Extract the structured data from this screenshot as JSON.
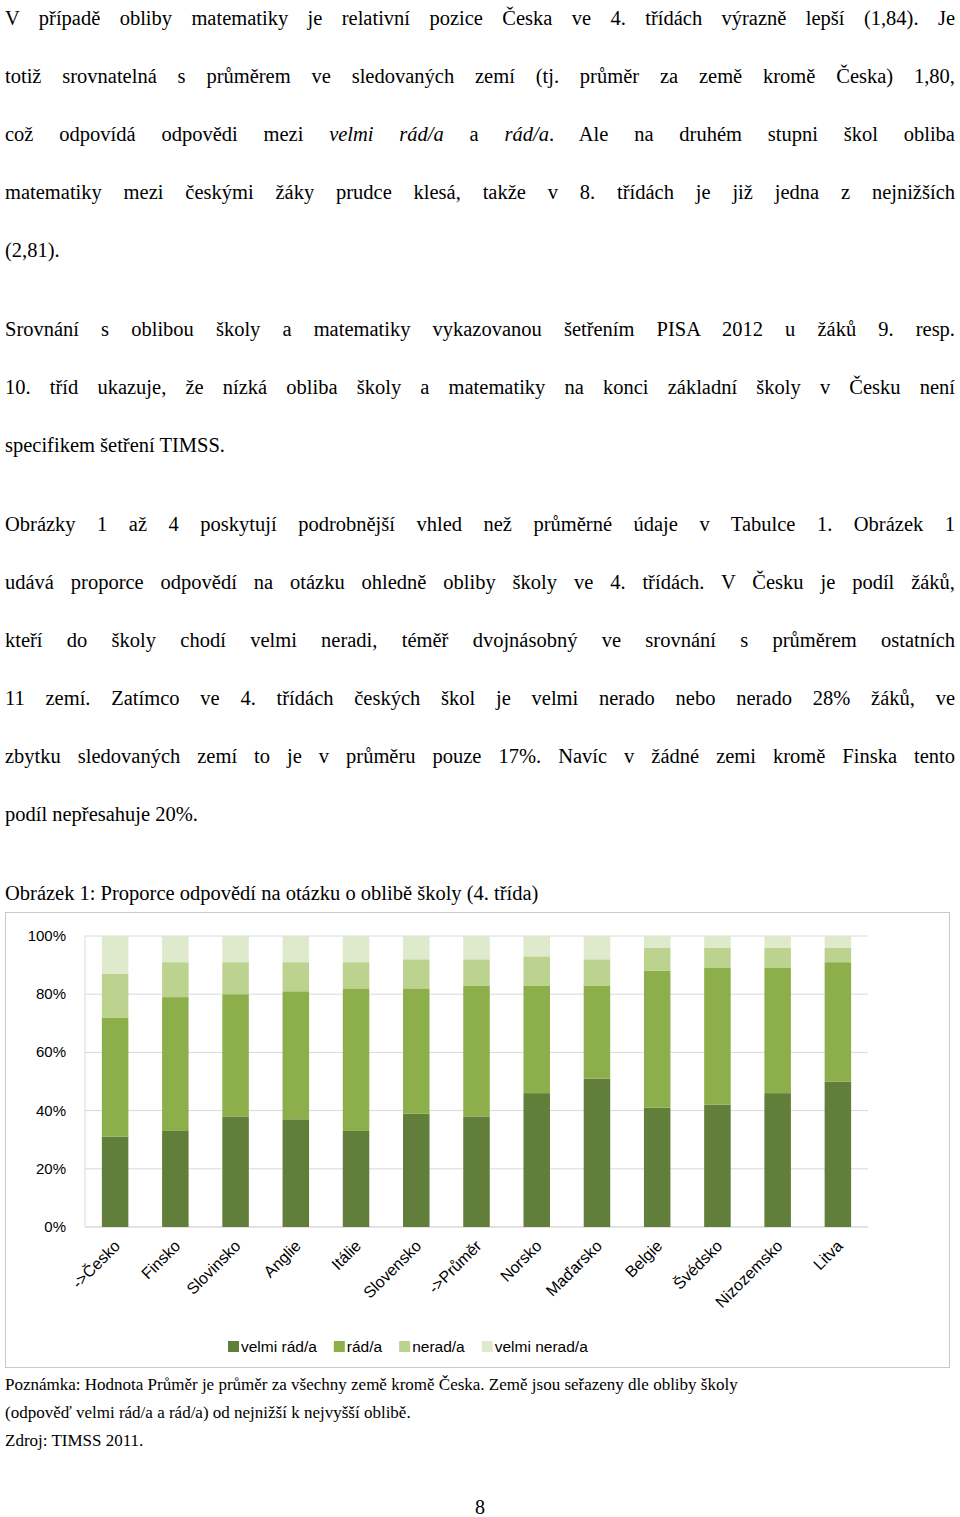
{
  "document": {
    "paragraphs": [
      [
        "V případě obliby matematiky je relativní pozice Česka ve 4. třídách výrazně lepší (1,84). Je",
        "totiž srovnatelná s průměrem ve sledovaných zemí (tj. průměr za země kromě Česka) 1,80,",
        [
          "což odpovídá odpovědi mezi ",
          {
            "text": "velmi rád/a",
            "italic": true
          },
          " a ",
          {
            "text": "rád/a",
            "italic": true
          },
          ". Ale na druhém stupni škol obliba"
        ],
        "matematiky mezi českými žáky prudce klesá, takže v 8. třídách je již jedna z nejnižších",
        "(2,81)."
      ],
      [
        "Srovnání s oblibou školy a matematiky vykazovanou šetřením PISA 2012 u žáků 9. resp.",
        "10. tříd ukazuje, že nízká obliba školy a matematiky na konci základní školy v Česku není",
        "specifikem šetření TIMSS."
      ],
      [
        "Obrázky 1 až 4 poskytují podrobnější vhled než průměrné údaje v Tabulce 1. Obrázek 1",
        "udává proporce odpovědí na otázku ohledně obliby školy ve 4. třídách. V Česku je podíl žáků,",
        "kteří do školy chodí velmi neradi, téměř dvojnásobný ve srovnání s průměrem ostatních",
        "11 zemí. Zatímco ve 4. třídách českých škol je velmi nerado nebo nerado 28% žáků, ve",
        "zbytku sledovaných zemí to je v průměru pouze 17%. Navíc v žádné zemi kromě Finska tento",
        "podíl nepřesahuje 20%."
      ]
    ],
    "figure_caption": "Obrázek 1: Proporce odpovědí na otázku o oblibě školy (4. třída)",
    "note": [
      "Poznámka: Hodnota Průměr je průměr za všechny země kromě Česka. Země jsou seřazeny dle obliby školy",
      "(odpověď velmi rád/a a rád/a) od nejnižší k nejvyšší oblibě.",
      "Zdroj: TIMSS 2011."
    ],
    "page_number": "8"
  },
  "chart_data": {
    "type": "bar",
    "stacked": true,
    "grid": true,
    "legend": "bottom",
    "categories": [
      "->Česko",
      "Finsko",
      "Slovinsko",
      "Anglie",
      "Itálie",
      "Slovensko",
      "->Průměr",
      "Norsko",
      "Maďarsko",
      "Belgie",
      "Švédsko",
      "Nizozemsko",
      "Litva"
    ],
    "series": [
      {
        "name": "velmi rád/a",
        "color": "#617e3a",
        "values": [
          31,
          33,
          38,
          37,
          33,
          39,
          38,
          46,
          51,
          41,
          42,
          46,
          50
        ]
      },
      {
        "name": "rád/a",
        "color": "#8daf4b",
        "values": [
          41,
          46,
          42,
          44,
          49,
          43,
          45,
          37,
          32,
          47,
          47,
          43,
          41
        ]
      },
      {
        "name": "nerad/a",
        "color": "#bcd38f",
        "values": [
          15,
          12,
          11,
          10,
          9,
          10,
          9,
          10,
          9,
          8,
          7,
          7,
          5
        ]
      },
      {
        "name": "velmi nerad/a",
        "color": "#dfe9cb",
        "values": [
          13,
          9,
          9,
          9,
          9,
          8,
          8,
          7,
          8,
          4,
          4,
          4,
          4
        ]
      }
    ],
    "ylim": [
      0,
      100
    ],
    "yticks": [
      {
        "value": 0,
        "label": "0%"
      },
      {
        "value": 20,
        "label": "20%"
      },
      {
        "value": 40,
        "label": "40%"
      },
      {
        "value": 60,
        "label": "60%"
      },
      {
        "value": 80,
        "label": "80%"
      },
      {
        "value": 100,
        "label": "100%"
      }
    ]
  }
}
